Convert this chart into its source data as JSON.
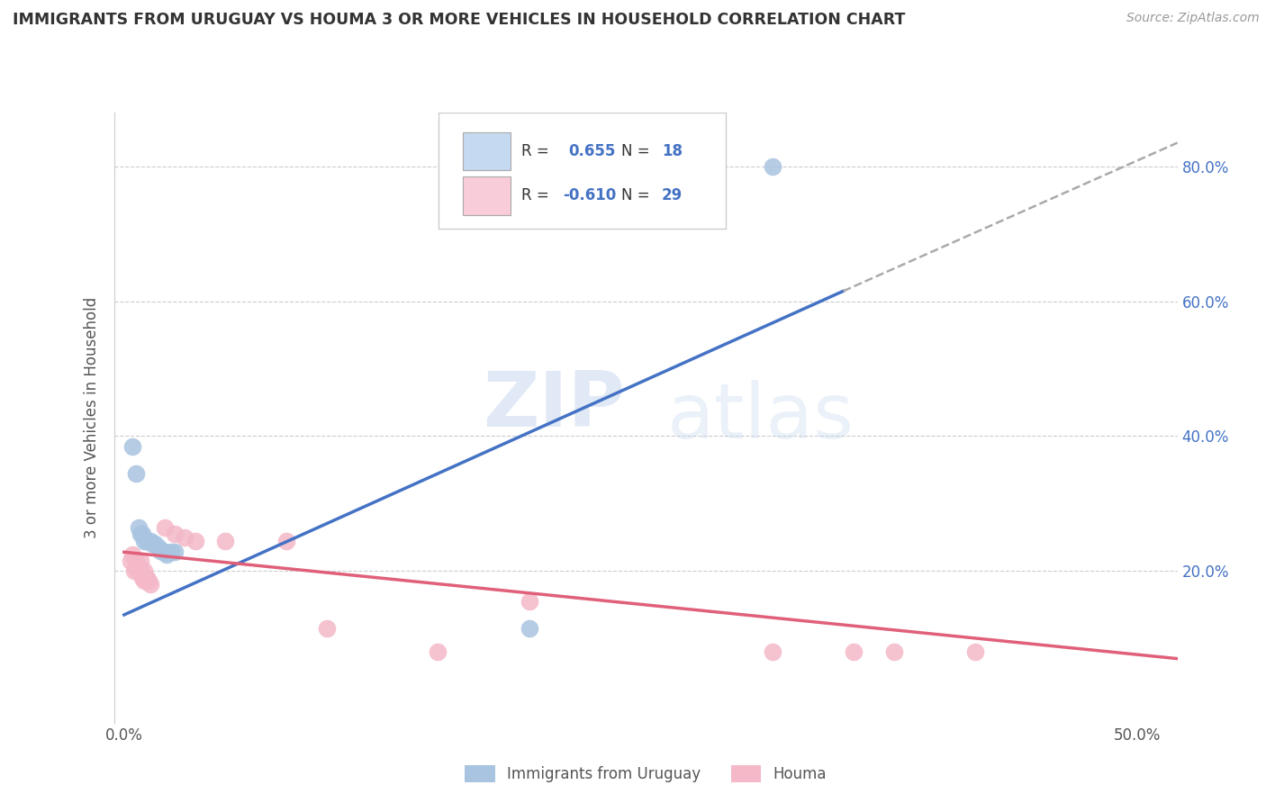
{
  "title": "IMMIGRANTS FROM URUGUAY VS HOUMA 3 OR MORE VEHICLES IN HOUSEHOLD CORRELATION CHART",
  "source": "Source: ZipAtlas.com",
  "ylabel": "3 or more Vehicles in Household",
  "watermark_zip": "ZIP",
  "watermark_atlas": "atlas",
  "blue_color": "#a8c4e0",
  "pink_color": "#f4b8c8",
  "blue_line_color": "#4472c4",
  "pink_line_color": "#e0607a",
  "dashed_line_color": "#aaaaaa",
  "legend_blue_fill": "#c5d9f0",
  "legend_pink_fill": "#f8ccd8",
  "legend_border": "#cccccc",
  "right_tick_color": "#4472c4",
  "xlim": [
    -0.005,
    0.52
  ],
  "ylim": [
    -0.025,
    0.88
  ],
  "blue_line_x": [
    0.0,
    0.355
  ],
  "blue_line_y": [
    0.135,
    0.615
  ],
  "dashed_line_x": [
    0.355,
    0.52
  ],
  "dashed_line_y": [
    0.615,
    0.835
  ],
  "pink_line_x": [
    0.0,
    0.52
  ],
  "pink_line_y": [
    0.228,
    0.07
  ],
  "blue_scatter": [
    [
      0.004,
      0.385
    ],
    [
      0.006,
      0.345
    ],
    [
      0.007,
      0.265
    ],
    [
      0.008,
      0.255
    ],
    [
      0.009,
      0.255
    ],
    [
      0.01,
      0.245
    ],
    [
      0.011,
      0.245
    ],
    [
      0.013,
      0.245
    ],
    [
      0.014,
      0.24
    ],
    [
      0.015,
      0.24
    ],
    [
      0.017,
      0.235
    ],
    [
      0.018,
      0.23
    ],
    [
      0.02,
      0.228
    ],
    [
      0.021,
      0.225
    ],
    [
      0.023,
      0.228
    ],
    [
      0.025,
      0.228
    ],
    [
      0.32,
      0.8
    ],
    [
      0.2,
      0.115
    ]
  ],
  "pink_scatter": [
    [
      0.003,
      0.215
    ],
    [
      0.004,
      0.225
    ],
    [
      0.005,
      0.2
    ],
    [
      0.006,
      0.215
    ],
    [
      0.006,
      0.205
    ],
    [
      0.007,
      0.205
    ],
    [
      0.007,
      0.2
    ],
    [
      0.008,
      0.215
    ],
    [
      0.008,
      0.2
    ],
    [
      0.009,
      0.195
    ],
    [
      0.009,
      0.19
    ],
    [
      0.01,
      0.185
    ],
    [
      0.01,
      0.2
    ],
    [
      0.011,
      0.19
    ],
    [
      0.012,
      0.185
    ],
    [
      0.013,
      0.18
    ],
    [
      0.02,
      0.265
    ],
    [
      0.025,
      0.255
    ],
    [
      0.03,
      0.25
    ],
    [
      0.035,
      0.245
    ],
    [
      0.05,
      0.245
    ],
    [
      0.08,
      0.245
    ],
    [
      0.1,
      0.115
    ],
    [
      0.155,
      0.08
    ],
    [
      0.32,
      0.08
    ],
    [
      0.36,
      0.08
    ],
    [
      0.38,
      0.08
    ],
    [
      0.42,
      0.08
    ],
    [
      0.2,
      0.155
    ]
  ],
  "ytick_vals": [
    0.2,
    0.4,
    0.6,
    0.8
  ],
  "ytick_labels": [
    "20.0%",
    "40.0%",
    "60.0%",
    "80.0%"
  ]
}
